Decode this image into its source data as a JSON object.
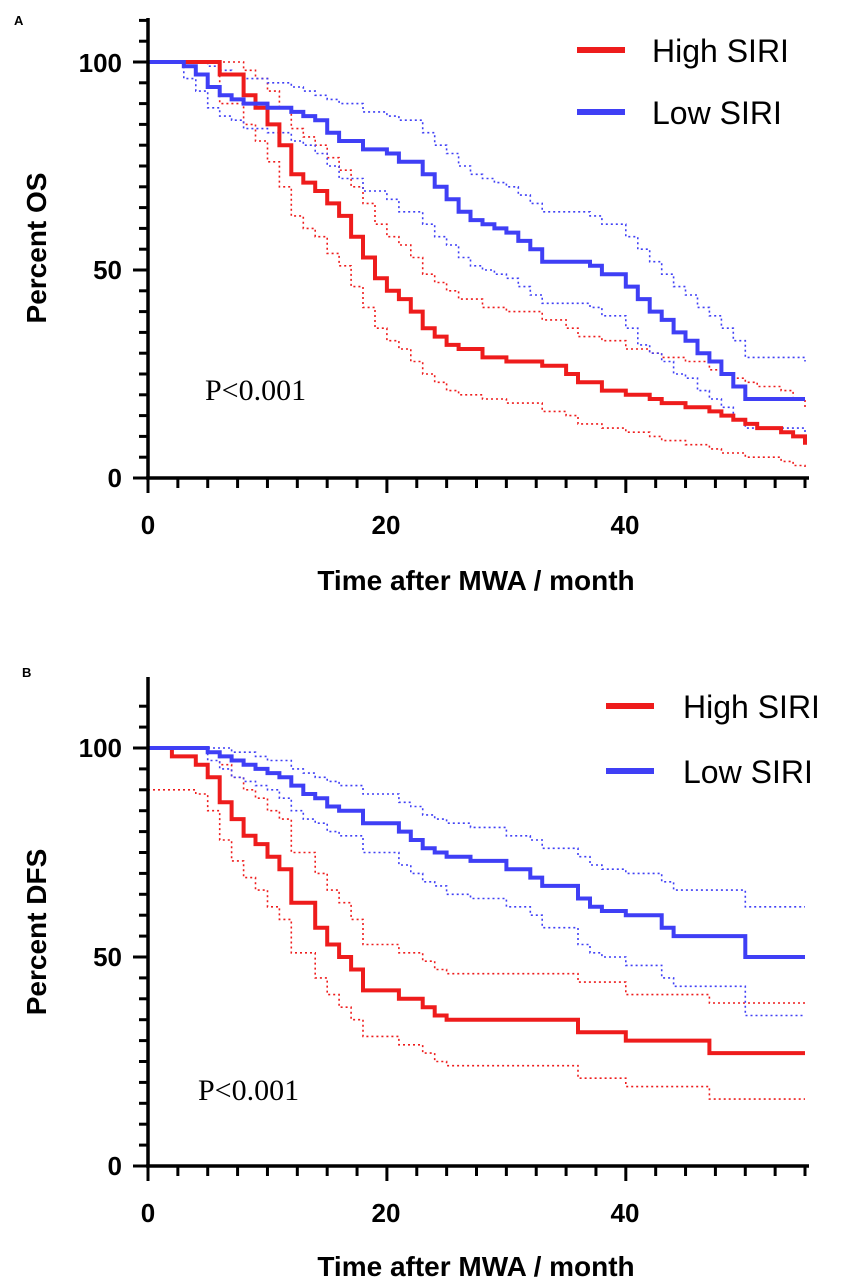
{
  "chart_data": [
    {
      "panel_label": "A",
      "type": "line",
      "subtype": "kaplan-meier step curves with dotted confidence bands",
      "xlabel": "Time after MWA / month",
      "ylabel": "Percent OS",
      "xlim": [
        0,
        55
      ],
      "ylim": [
        0,
        100
      ],
      "xticks": [
        "0",
        "20",
        "40"
      ],
      "yticks": [
        "0",
        "50",
        "100"
      ],
      "legend_position": "top-right",
      "annotation": "P<0.001",
      "series": [
        {
          "name": "High SIRI",
          "color": "#ee1c1c",
          "x": [
            0,
            6,
            8,
            9,
            10,
            11,
            12,
            13,
            14,
            15,
            16,
            17,
            18,
            19,
            20,
            21,
            22,
            23,
            24,
            25,
            26,
            28,
            30,
            33,
            35,
            36,
            38,
            40,
            42,
            43,
            45,
            47,
            48,
            49,
            50,
            51,
            53,
            54,
            55
          ],
          "y": [
            100,
            97,
            92,
            89,
            85,
            80,
            73,
            71,
            69,
            66,
            63,
            58,
            53,
            48,
            45,
            43,
            40,
            36,
            34,
            32,
            31,
            29,
            28,
            27,
            25,
            23,
            21,
            20,
            19,
            18,
            17,
            16,
            15,
            14,
            13,
            12,
            11,
            10,
            8
          ]
        },
        {
          "name": "High SIRI upper 95% CI",
          "color": "#ee1c1c",
          "x": [
            0,
            6,
            8,
            9,
            10,
            11,
            12,
            13,
            14,
            15,
            16,
            17,
            18,
            19,
            20,
            21,
            22,
            23,
            24,
            25,
            26,
            28,
            30,
            33,
            35,
            36,
            38,
            40,
            42,
            43,
            45,
            47,
            48,
            49,
            50,
            51,
            53,
            54,
            55
          ],
          "y": [
            100,
            100,
            98,
            96,
            93,
            89,
            84,
            82,
            80,
            77,
            74,
            70,
            66,
            61,
            58,
            56,
            53,
            49,
            47,
            45,
            43,
            41,
            40,
            38,
            36,
            34,
            33,
            31,
            30,
            29,
            28,
            26,
            25,
            24,
            23,
            22,
            21,
            19,
            17
          ]
        },
        {
          "name": "High SIRI lower 95% CI",
          "color": "#ee1c1c",
          "x": [
            0,
            6,
            8,
            9,
            10,
            11,
            12,
            13,
            14,
            15,
            16,
            17,
            18,
            19,
            20,
            21,
            22,
            23,
            24,
            25,
            26,
            28,
            30,
            33,
            35,
            36,
            38,
            40,
            42,
            43,
            45,
            47,
            48,
            49,
            50,
            51,
            53,
            54,
            55
          ],
          "y": [
            100,
            90,
            85,
            81,
            76,
            70,
            63,
            60,
            58,
            54,
            51,
            46,
            41,
            36,
            33,
            31,
            28,
            25,
            23,
            21,
            20,
            19,
            18,
            16,
            15,
            13,
            12,
            11,
            10,
            9,
            8,
            7,
            6,
            6,
            5,
            5,
            4,
            3,
            2
          ]
        },
        {
          "name": "Low SIRI",
          "color": "#3f3ff5",
          "x": [
            0,
            3,
            4,
            5,
            6,
            7,
            8,
            10,
            12,
            13,
            14,
            15,
            16,
            18,
            20,
            21,
            23,
            24,
            25,
            26,
            27,
            28,
            29,
            30,
            31,
            32,
            33,
            34,
            37,
            38,
            40,
            41,
            42,
            43,
            44,
            45,
            46,
            47,
            48,
            49,
            50,
            55
          ],
          "y": [
            100,
            99,
            97,
            94,
            92,
            91,
            90,
            89,
            88,
            87,
            86,
            83,
            81,
            79,
            78,
            76,
            73,
            70,
            67,
            64,
            62,
            61,
            60,
            59,
            57,
            55,
            52,
            52,
            51,
            49,
            46,
            43,
            40,
            38,
            35,
            33,
            30,
            28,
            25,
            22,
            19,
            19
          ]
        },
        {
          "name": "Low SIRI upper 95% CI",
          "color": "#3f3ff5",
          "x": [
            0,
            3,
            4,
            5,
            6,
            7,
            8,
            10,
            12,
            13,
            14,
            15,
            16,
            18,
            20,
            21,
            23,
            24,
            25,
            26,
            27,
            28,
            29,
            30,
            31,
            32,
            33,
            34,
            37,
            38,
            40,
            41,
            42,
            43,
            44,
            45,
            46,
            47,
            48,
            49,
            50,
            55
          ],
          "y": [
            100,
            100,
            100,
            99,
            98,
            97,
            96,
            95,
            94,
            93,
            92,
            91,
            90,
            88,
            87,
            86,
            83,
            80,
            78,
            75,
            73,
            72,
            71,
            70,
            68,
            66,
            64,
            64,
            63,
            61,
            58,
            55,
            52,
            49,
            46,
            44,
            41,
            39,
            36,
            33,
            29,
            28
          ]
        },
        {
          "name": "Low SIRI lower 95% CI",
          "color": "#3f3ff5",
          "x": [
            0,
            3,
            4,
            5,
            6,
            7,
            8,
            10,
            12,
            13,
            14,
            15,
            16,
            18,
            20,
            21,
            23,
            24,
            25,
            26,
            27,
            28,
            29,
            30,
            31,
            32,
            33,
            34,
            37,
            38,
            40,
            41,
            42,
            43,
            44,
            45,
            46,
            47,
            48,
            49,
            50,
            55
          ],
          "y": [
            100,
            96,
            93,
            89,
            87,
            86,
            84,
            83,
            81,
            80,
            78,
            75,
            72,
            69,
            67,
            64,
            61,
            58,
            56,
            53,
            51,
            50,
            49,
            48,
            46,
            44,
            42,
            42,
            41,
            39,
            36,
            32,
            30,
            28,
            25,
            24,
            21,
            19,
            17,
            14,
            12,
            11
          ]
        }
      ]
    },
    {
      "panel_label": "B",
      "type": "line",
      "subtype": "kaplan-meier step curves with dotted confidence bands",
      "xlabel": "Time after MWA / month",
      "ylabel": "Percent DFS",
      "xlim": [
        0,
        55
      ],
      "ylim": [
        0,
        100
      ],
      "xticks": [
        "0",
        "20",
        "40"
      ],
      "yticks": [
        "0",
        "50",
        "100"
      ],
      "legend_position": "top-right",
      "annotation": "P<0.001",
      "series": [
        {
          "name": "High SIRI",
          "color": "#ee1c1c",
          "x": [
            0,
            2,
            4,
            5,
            6,
            7,
            8,
            9,
            10,
            11,
            12,
            14,
            15,
            16,
            17,
            18,
            21,
            23,
            24,
            25,
            36,
            40,
            47,
            55
          ],
          "y": [
            100,
            98,
            96,
            93,
            87,
            83,
            79,
            77,
            74,
            71,
            63,
            57,
            53,
            50,
            47,
            42,
            40,
            38,
            36,
            35,
            32,
            30,
            27,
            27
          ]
        },
        {
          "name": "High SIRI upper 95% CI",
          "color": "#ee1c1c",
          "x": [
            0,
            2,
            4,
            5,
            6,
            7,
            8,
            9,
            10,
            11,
            12,
            14,
            15,
            16,
            17,
            18,
            21,
            23,
            24,
            25,
            36,
            40,
            47,
            55
          ],
          "y": [
            100,
            100,
            100,
            99,
            96,
            93,
            90,
            88,
            85,
            83,
            75,
            70,
            66,
            63,
            59,
            53,
            51,
            49,
            47,
            46,
            44,
            41,
            39,
            39
          ]
        },
        {
          "name": "High SIRI lower 95% CI",
          "color": "#ee1c1c",
          "x": [
            0,
            2,
            4,
            5,
            6,
            7,
            8,
            9,
            10,
            11,
            12,
            14,
            15,
            16,
            17,
            18,
            21,
            23,
            24,
            25,
            36,
            40,
            47,
            55
          ],
          "y": [
            90,
            90,
            89,
            85,
            78,
            73,
            69,
            66,
            62,
            59,
            51,
            45,
            41,
            38,
            35,
            31,
            29,
            27,
            25,
            24,
            21,
            19,
            16,
            16
          ]
        },
        {
          "name": "Low SIRI",
          "color": "#3f3ff5",
          "x": [
            0,
            5,
            6,
            7,
            8,
            9,
            10,
            11,
            12,
            13,
            14,
            15,
            16,
            18,
            21,
            22,
            23,
            24,
            25,
            27,
            30,
            32,
            33,
            36,
            37,
            38,
            40,
            43,
            44,
            50,
            55
          ],
          "y": [
            100,
            99,
            98,
            97,
            96,
            95,
            94,
            93,
            91,
            89,
            88,
            86,
            85,
            82,
            80,
            78,
            76,
            75,
            74,
            73,
            71,
            69,
            67,
            64,
            62,
            61,
            60,
            57,
            55,
            50,
            50
          ]
        },
        {
          "name": "Low SIRI upper 95% CI",
          "color": "#3f3ff5",
          "x": [
            0,
            5,
            6,
            7,
            8,
            9,
            10,
            11,
            12,
            13,
            14,
            15,
            16,
            18,
            21,
            22,
            23,
            24,
            25,
            27,
            30,
            32,
            33,
            36,
            37,
            38,
            40,
            43,
            44,
            50,
            55
          ],
          "y": [
            100,
            100,
            100,
            99,
            99,
            98,
            97,
            97,
            95,
            94,
            93,
            92,
            91,
            89,
            87,
            86,
            84,
            83,
            82,
            81,
            79,
            78,
            76,
            74,
            72,
            71,
            70,
            68,
            66,
            62,
            62
          ]
        },
        {
          "name": "Low SIRI lower 95% CI",
          "color": "#3f3ff5",
          "x": [
            0,
            5,
            6,
            7,
            8,
            9,
            10,
            11,
            12,
            13,
            14,
            15,
            16,
            18,
            21,
            22,
            23,
            24,
            25,
            27,
            30,
            32,
            33,
            36,
            37,
            38,
            40,
            43,
            44,
            50,
            55
          ],
          "y": [
            100,
            97,
            95,
            93,
            92,
            91,
            90,
            88,
            85,
            83,
            82,
            80,
            79,
            75,
            72,
            70,
            68,
            67,
            65,
            64,
            62,
            60,
            57,
            53,
            51,
            50,
            48,
            45,
            43,
            36,
            36
          ]
        }
      ]
    }
  ]
}
